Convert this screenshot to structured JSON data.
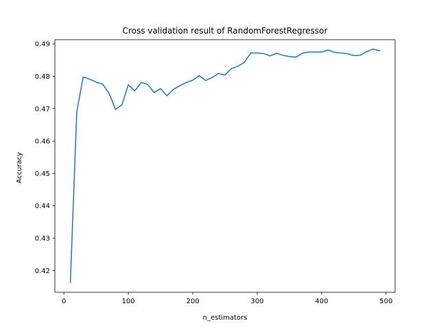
{
  "chart_data": {
    "type": "line",
    "title": "Cross validation result of RandomForestRegressor",
    "xlabel": "n_estimators",
    "ylabel": "Accuracy",
    "xlim": [
      -14,
      514
    ],
    "ylim": [
      0.4133,
      0.4913
    ],
    "xticks": [
      0,
      100,
      200,
      300,
      400,
      500
    ],
    "xtick_labels": [
      "0",
      "100",
      "200",
      "300",
      "400",
      "500"
    ],
    "yticks": [
      0.42,
      0.43,
      0.44,
      0.45,
      0.46,
      0.47,
      0.48,
      0.49
    ],
    "ytick_labels": [
      "0.42",
      "0.43",
      "0.44",
      "0.45",
      "0.46",
      "0.47",
      "0.48",
      "0.49"
    ],
    "grid": false,
    "legend": "none",
    "line_color": "#1f77b4",
    "series": [
      {
        "x": [
          10,
          20,
          30,
          40,
          50,
          60,
          70,
          80,
          90,
          100,
          110,
          120,
          130,
          140,
          150,
          160,
          170,
          180,
          190,
          200,
          210,
          220,
          230,
          240,
          250,
          260,
          270,
          280,
          290,
          300,
          310,
          320,
          330,
          340,
          350,
          360,
          370,
          380,
          390,
          400,
          410,
          420,
          430,
          440,
          450,
          460,
          470,
          480,
          490
        ],
        "y": [
          0.4163,
          0.4691,
          0.4798,
          0.4791,
          0.4782,
          0.4776,
          0.4748,
          0.4698,
          0.4712,
          0.4774,
          0.4755,
          0.4781,
          0.4775,
          0.475,
          0.4762,
          0.474,
          0.476,
          0.4771,
          0.4781,
          0.4788,
          0.4802,
          0.4787,
          0.4796,
          0.4809,
          0.4804,
          0.4824,
          0.4831,
          0.4843,
          0.4872,
          0.4872,
          0.487,
          0.4863,
          0.4871,
          0.4865,
          0.4861,
          0.4859,
          0.4871,
          0.4875,
          0.4875,
          0.4875,
          0.4881,
          0.4874,
          0.4872,
          0.487,
          0.4864,
          0.4865,
          0.4876,
          0.4884,
          0.4879
        ]
      }
    ]
  }
}
